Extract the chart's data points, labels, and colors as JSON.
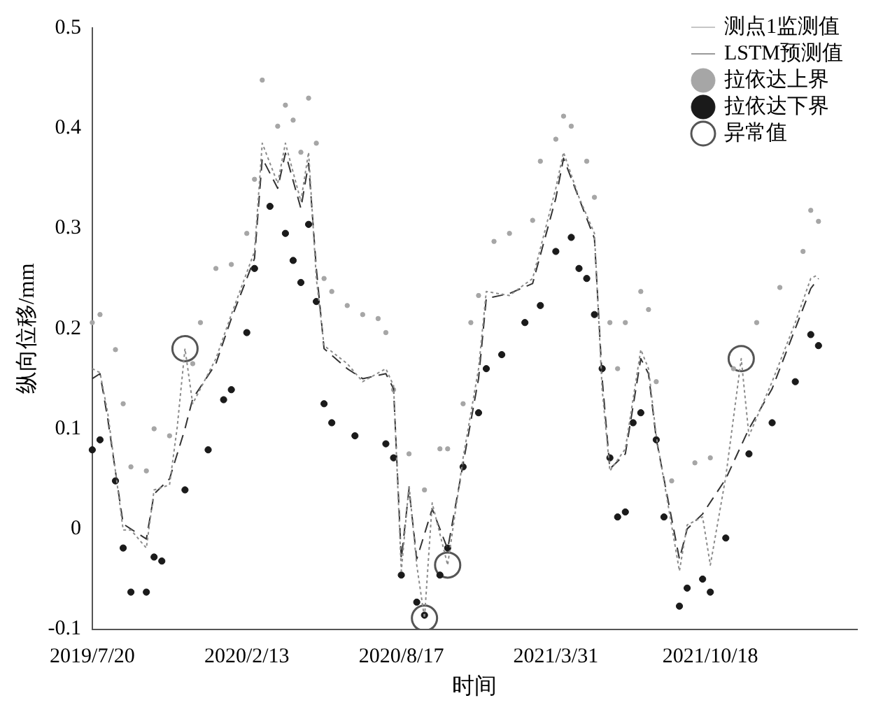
{
  "chart_data": {
    "type": "line",
    "xlabel": "时间",
    "ylabel": "纵向位移/mm",
    "categories": [
      "2019/7/20",
      null,
      null,
      null,
      null,
      null,
      null,
      null,
      null,
      null,
      null,
      null,
      null,
      null,
      null,
      null,
      null,
      null,
      null,
      null,
      "2020/2/13",
      null,
      null,
      null,
      null,
      null,
      null,
      null,
      null,
      null,
      null,
      null,
      null,
      null,
      null,
      null,
      null,
      null,
      null,
      null,
      "2020/8/17",
      null,
      null,
      null,
      null,
      null,
      null,
      null,
      null,
      null,
      null,
      null,
      null,
      null,
      null,
      null,
      null,
      null,
      null,
      null,
      "2021/3/31",
      null,
      null,
      null,
      null,
      null,
      null,
      null,
      null,
      null,
      null,
      null,
      null,
      null,
      null,
      null,
      null,
      null,
      null,
      null,
      "2021/10/18",
      null,
      null,
      null,
      null,
      null,
      null,
      null,
      null,
      null,
      null,
      null,
      null,
      null,
      null,
      null,
      null,
      null,
      null,
      null
    ],
    "ylim": [
      -0.1,
      0.5
    ],
    "yticks": [
      -0.1,
      0,
      0.1,
      0.2,
      0.3,
      0.4,
      0.5
    ],
    "grid": false,
    "legend": "top right",
    "series": [
      {
        "name": "测点1监测值",
        "type": "line",
        "line_style": "dotted",
        "marker": "none",
        "color": "#8c8c8c",
        "values": [
          0.16,
          0.156,
          0.116,
          null,
          -0.001,
          -0.001,
          null,
          -0.019,
          0.039,
          null,
          0.044,
          0.102,
          0.18,
          0.125,
          null,
          null,
          0.17,
          null,
          0.214,
          null,
          null,
          0.277,
          0.385,
          null,
          0.345,
          0.385,
          null,
          0.327,
          0.376,
          0.25,
          0.183,
          null,
          null,
          0.165,
          null,
          0.147,
          null,
          null,
          0.16,
          0.143,
          -0.042,
          0.044,
          -0.036,
          -0.089,
          0.026,
          null,
          -0.036,
          null,
          0.071,
          null,
          0.16,
          0.237,
          null,
          null,
          0.233,
          null,
          null,
          0.25,
          null,
          null,
          0.34,
          0.376,
          null,
          0.331,
          null,
          0.295,
          0.139,
          0.058,
          null,
          0.08,
          null,
          0.179,
          0.16,
          0.093,
          null,
          null,
          -0.042,
          0.004,
          null,
          0.012,
          -0.036,
          null,
          0.052,
          null,
          0.17,
          0.093,
          null,
          null,
          0.147,
          null,
          null,
          0.206,
          null,
          0.25,
          0.254,
          null,
          null,
          null,
          null,
          null
        ]
      },
      {
        "name": "LSTM预测值",
        "type": "line",
        "line_style": "dashed",
        "marker": "none",
        "color": "#333333",
        "values": [
          0.15,
          0.155,
          0.11,
          null,
          0.005,
          0,
          null,
          -0.01,
          0.035,
          null,
          0.05,
          null,
          0.1,
          0.13,
          null,
          null,
          0.165,
          null,
          0.21,
          null,
          null,
          0.27,
          0.37,
          null,
          0.34,
          0.375,
          null,
          0.32,
          0.365,
          0.26,
          0.18,
          null,
          null,
          0.16,
          null,
          0.15,
          null,
          null,
          0.155,
          0.14,
          -0.03,
          0.04,
          -0.03,
          null,
          0.02,
          null,
          -0.02,
          null,
          0.065,
          null,
          0.15,
          0.23,
          null,
          null,
          0.235,
          null,
          null,
          0.245,
          null,
          null,
          0.33,
          0.37,
          null,
          0.33,
          null,
          0.29,
          0.15,
          0.06,
          null,
          0.075,
          null,
          0.17,
          0.155,
          0.09,
          null,
          null,
          -0.03,
          0,
          null,
          0.015,
          null,
          null,
          0.05,
          null,
          null,
          0.1,
          null,
          null,
          0.14,
          null,
          null,
          0.2,
          null,
          0.24,
          0.25,
          null,
          null,
          null,
          null,
          null
        ]
      },
      {
        "name": "拉依达上界",
        "type": "scatter",
        "marker": "circle",
        "color": "#a6a6a6",
        "values": [
          0.206,
          0.214,
          null,
          0.179,
          0.125,
          0.062,
          null,
          0.058,
          0.1,
          null,
          0.093,
          null,
          null,
          0.165,
          0.206,
          null,
          0.26,
          null,
          0.264,
          null,
          0.295,
          0.349,
          0.448,
          null,
          0.402,
          0.423,
          0.408,
          0.376,
          0.43,
          0.385,
          0.25,
          0.237,
          null,
          0.223,
          null,
          0.214,
          null,
          0.21,
          0.196,
          0.139,
          null,
          0.075,
          null,
          0.039,
          null,
          0.08,
          0.08,
          null,
          0.125,
          0.206,
          0.233,
          null,
          0.287,
          null,
          0.295,
          null,
          null,
          0.308,
          0.367,
          null,
          0.389,
          0.412,
          0.402,
          null,
          0.367,
          0.331,
          null,
          0.206,
          0.16,
          0.206,
          null,
          0.237,
          0.219,
          0.147,
          null,
          0.048,
          null,
          null,
          0.066,
          null,
          0.071,
          null,
          null,
          0.16,
          null,
          null,
          0.206,
          null,
          null,
          0.241,
          null,
          null,
          0.277,
          0.318,
          0.307,
          null,
          null,
          null,
          null,
          null
        ]
      },
      {
        "name": "拉依达下界",
        "type": "scatter",
        "marker": "circle",
        "color": "#1a1a1a",
        "values": [
          0.079,
          0.089,
          null,
          0.048,
          -0.019,
          -0.063,
          null,
          -0.063,
          -0.028,
          -0.032,
          null,
          null,
          0.039,
          null,
          null,
          0.079,
          null,
          0.129,
          0.139,
          null,
          0.196,
          0.26,
          null,
          0.322,
          null,
          0.295,
          0.268,
          0.246,
          0.304,
          0.227,
          0.125,
          0.106,
          null,
          null,
          0.093,
          null,
          null,
          null,
          0.085,
          0.071,
          -0.046,
          null,
          -0.073,
          -0.086,
          null,
          -0.046,
          -0.019,
          null,
          0.062,
          null,
          0.116,
          0.16,
          null,
          0.174,
          null,
          null,
          0.206,
          null,
          0.223,
          null,
          0.277,
          null,
          0.291,
          0.26,
          0.25,
          0.214,
          0.16,
          0.071,
          0.012,
          0.017,
          0.106,
          0.116,
          null,
          0.089,
          0.012,
          null,
          -0.077,
          -0.059,
          null,
          -0.05,
          -0.063,
          null,
          -0.009,
          null,
          null,
          0.075,
          null,
          null,
          0.106,
          null,
          null,
          0.147,
          null,
          0.194,
          0.183,
          null,
          null,
          null,
          null,
          null
        ]
      },
      {
        "name": "异常值",
        "type": "scatter",
        "marker": "circle",
        "color": "#555555",
        "values": [
          null,
          null,
          null,
          null,
          null,
          null,
          null,
          null,
          null,
          null,
          null,
          null,
          0.18,
          null,
          null,
          null,
          null,
          null,
          null,
          null,
          null,
          null,
          null,
          null,
          null,
          null,
          null,
          null,
          null,
          null,
          null,
          null,
          null,
          null,
          null,
          null,
          null,
          null,
          null,
          null,
          null,
          null,
          null,
          -0.089,
          null,
          null,
          -0.036,
          null,
          null,
          null,
          null,
          null,
          null,
          null,
          null,
          null,
          null,
          null,
          null,
          null,
          null,
          null,
          null,
          null,
          null,
          null,
          null,
          null,
          null,
          null,
          null,
          null,
          null,
          null,
          null,
          null,
          null,
          null,
          null,
          null,
          null,
          null,
          null,
          null,
          0.17,
          null,
          null,
          null,
          null,
          null,
          null,
          null,
          null,
          null,
          null,
          null,
          null,
          null,
          null,
          null
        ]
      }
    ]
  }
}
